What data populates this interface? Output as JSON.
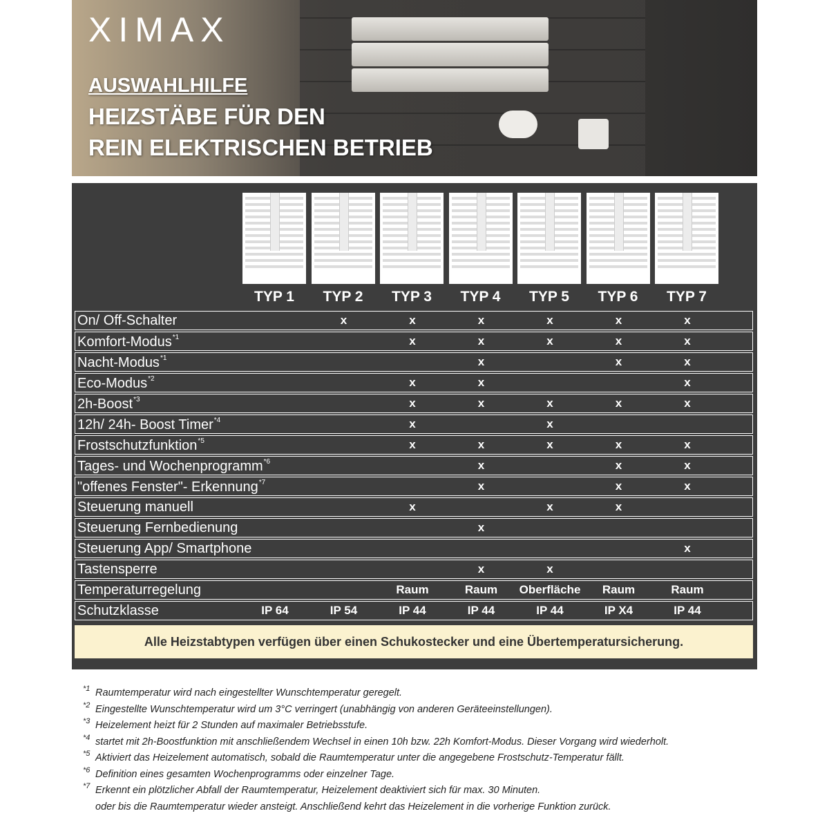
{
  "header": {
    "logo": "XIMAX",
    "title_lines": [
      "AUSWAHLHILFE",
      "HEIZSTÄBE FÜR DEN",
      "REIN ELEKTRISCHEN BETRIEB"
    ]
  },
  "table": {
    "columns": [
      "TYP 1",
      "TYP 2",
      "TYP 3",
      "TYP 4",
      "TYP 5",
      "TYP 6",
      "TYP 7"
    ],
    "rows": [
      {
        "label": "On/ Off-Schalter",
        "cells": [
          null,
          "x",
          "x",
          "x",
          "x",
          "x",
          "x"
        ]
      },
      {
        "label": "Komfort-Modus",
        "note": "*1",
        "cells": [
          null,
          null,
          "x",
          "x",
          "x",
          "x",
          "x"
        ]
      },
      {
        "label": "Nacht-Modus",
        "note": "*1",
        "cells": [
          null,
          null,
          null,
          "x",
          null,
          "x",
          "x"
        ]
      },
      {
        "label": "Eco-Modus",
        "note": "*2",
        "cells": [
          null,
          null,
          "x",
          "x",
          null,
          null,
          "x"
        ]
      },
      {
        "label": "2h-Boost",
        "note": "*3",
        "cells": [
          null,
          null,
          "x",
          "x",
          "x",
          "x",
          "x"
        ]
      },
      {
        "label": "12h/ 24h- Boost Timer",
        "note": "*4",
        "cells": [
          null,
          null,
          "x",
          null,
          "x",
          null,
          null
        ]
      },
      {
        "label": "Frostschutzfunktion",
        "note": "*5",
        "cells": [
          null,
          null,
          "x",
          "x",
          "x",
          "x",
          "x"
        ]
      },
      {
        "label": "Tages- und Wochenprogramm",
        "note": "*6",
        "cells": [
          null,
          null,
          null,
          "x",
          null,
          "x",
          "x"
        ]
      },
      {
        "label": "\"offenes Fenster\"- Erkennung",
        "note": "*7",
        "cells": [
          null,
          null,
          null,
          "x",
          null,
          "x",
          "x"
        ]
      },
      {
        "label": "Steuerung manuell",
        "cells": [
          null,
          null,
          "x",
          null,
          "x",
          "x",
          null
        ]
      },
      {
        "label": "Steuerung Fernbedienung",
        "cells": [
          null,
          null,
          null,
          "x",
          null,
          null,
          null
        ]
      },
      {
        "label": "Steuerung App/ Smartphone",
        "cells": [
          null,
          null,
          null,
          null,
          null,
          null,
          "x"
        ]
      },
      {
        "label": "Tastensperre",
        "cells": [
          null,
          null,
          null,
          "x",
          "x",
          null,
          null
        ]
      },
      {
        "label": "Temperaturregelung",
        "cells": [
          null,
          null,
          "Raum",
          "Raum",
          "Oberfläche",
          "Raum",
          "Raum"
        ]
      },
      {
        "label": "Schutzklasse",
        "cells": [
          "IP 64",
          "IP 54",
          "IP 44",
          "IP 44",
          "IP 44",
          "IP X4",
          "IP 44"
        ]
      }
    ]
  },
  "notice": "Alle Heizstabtypen verfügen über einen Schukostecker und eine Übertemperatursicherung.",
  "footnotes": [
    {
      "marker": "*1",
      "lines": [
        "Raumtemperatur wird nach eingestellter Wunschtemperatur geregelt."
      ]
    },
    {
      "marker": "*2",
      "lines": [
        "Eingestellte Wunschtemperatur wird um 3°C verringert (unabhängig von anderen Geräteeinstellungen)."
      ]
    },
    {
      "marker": "*3",
      "lines": [
        "Heizelement heizt für 2 Stunden auf maximaler Betriebsstufe."
      ]
    },
    {
      "marker": "*4",
      "lines": [
        "startet mit 2h-Boostfunktion mit anschließendem Wechsel in einen 10h bzw. 22h Komfort-Modus. Dieser Vorgang wird wiederholt."
      ]
    },
    {
      "marker": "*5",
      "lines": [
        "Aktiviert das Heizelement automatisch, sobald die Raumtemperatur unter die angegebene Frostschutz-Temperatur fällt."
      ]
    },
    {
      "marker": "*6",
      "lines": [
        "Definition eines gesamten Wochenprogramms oder einzelner Tage."
      ]
    },
    {
      "marker": "*7",
      "lines": [
        "Erkennt ein plötzlicher Abfall der Raumtemperatur, Heizelement deaktiviert sich für max. 30 Minuten.",
        "oder bis die Raumtemperatur wieder ansteigt. Anschließend kehrt das Heizelement in die vorherige Funktion zurück."
      ]
    }
  ]
}
